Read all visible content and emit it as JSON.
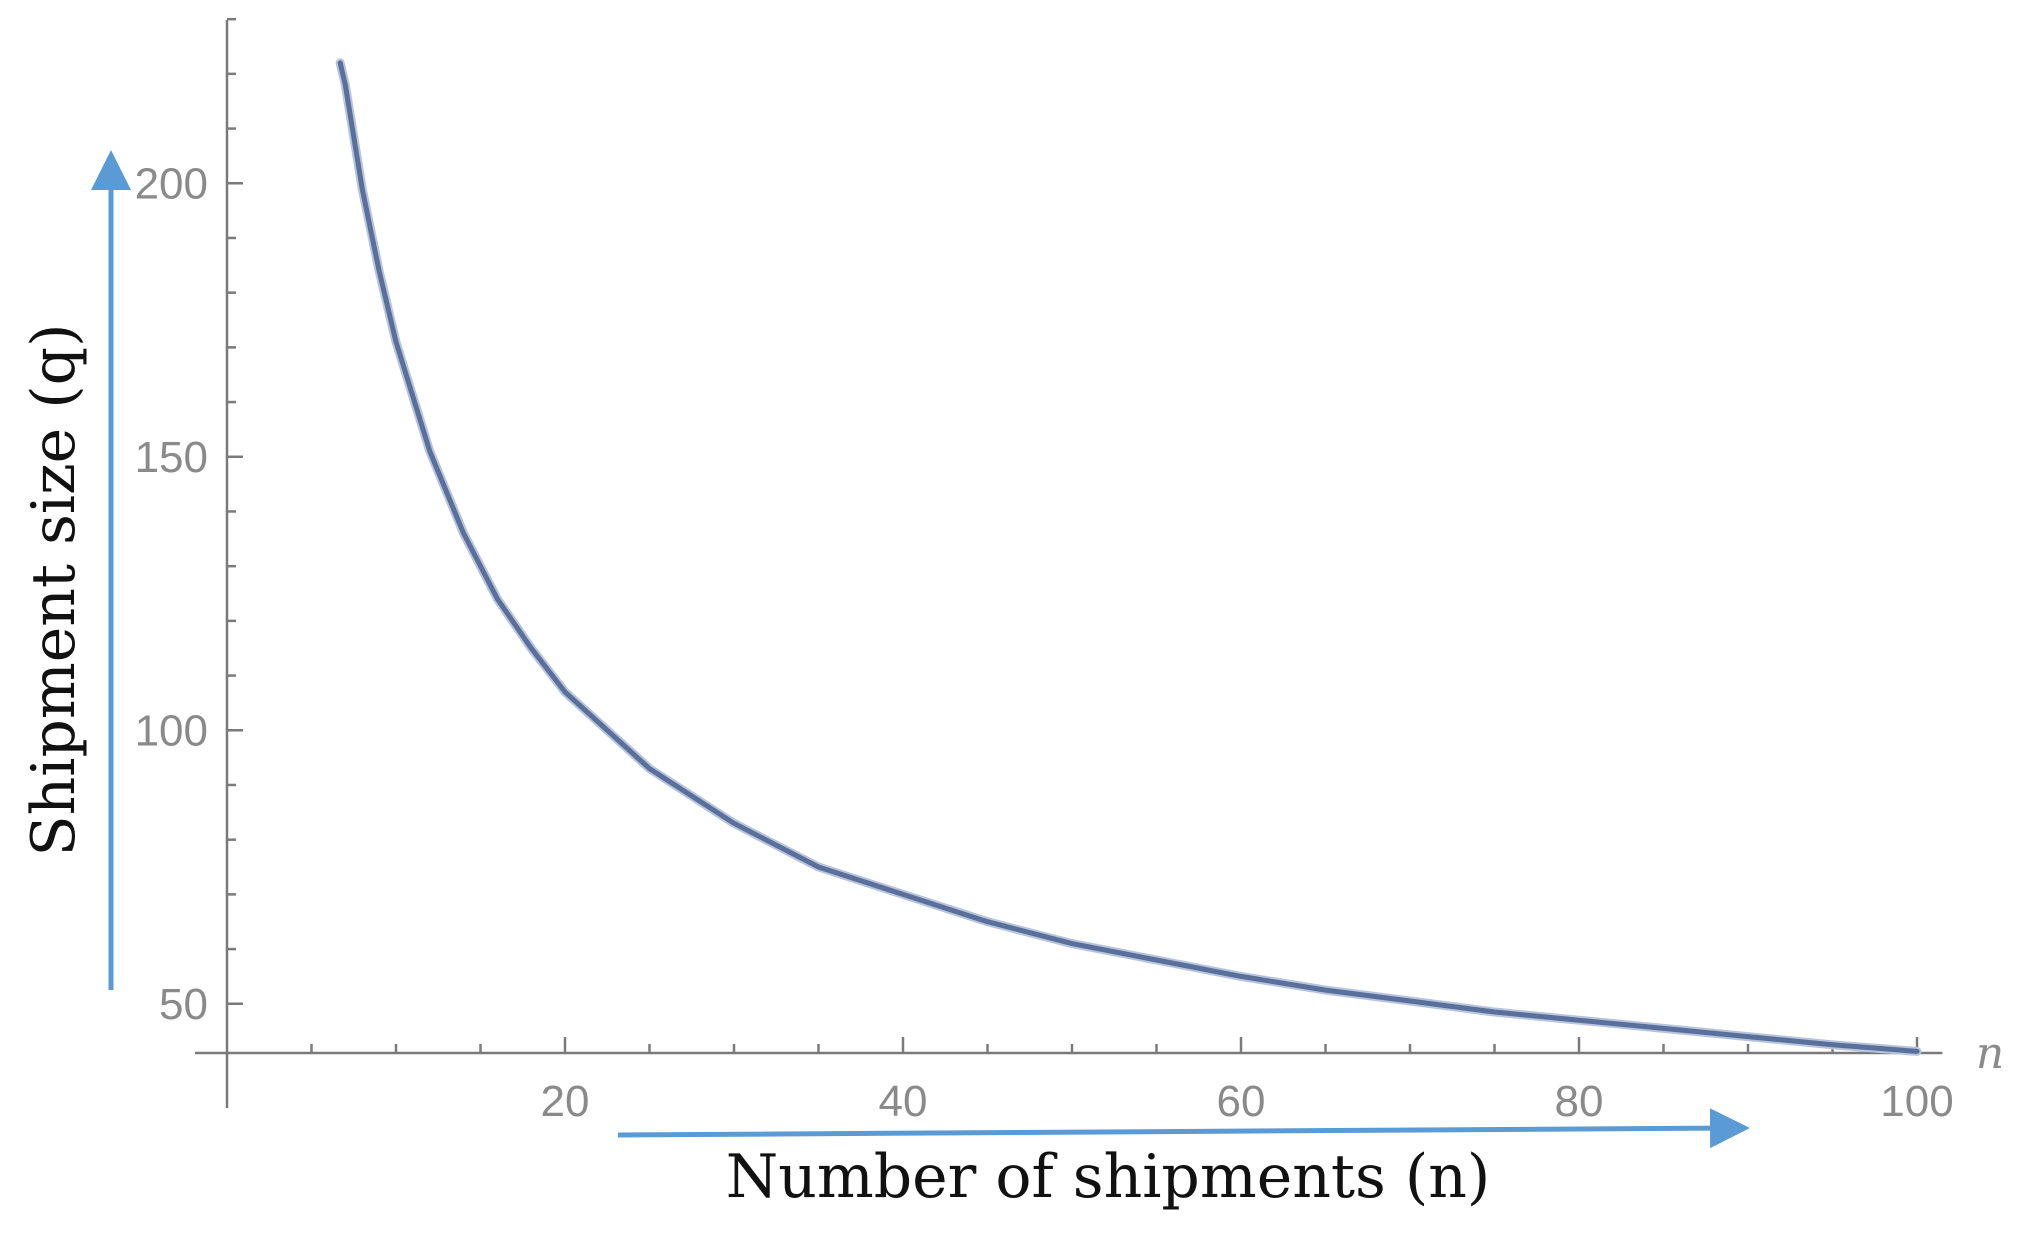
{
  "chart_data": {
    "type": "line",
    "title": "",
    "xlabel": "Number of shipments (n)",
    "ylabel": "Shipment size (q)",
    "x_axis_symbol": "n",
    "xlim": [
      0,
      101.5
    ],
    "ylim": [
      41,
      230
    ],
    "x_ticks": [
      20,
      40,
      60,
      80,
      100
    ],
    "y_ticks": [
      50,
      100,
      150,
      200
    ],
    "x_minor_step": 5,
    "y_minor_step": 10,
    "grid": false,
    "legend": "none",
    "series": [
      {
        "x": [
          6.7,
          7,
          8,
          9,
          10,
          12,
          14,
          16,
          18,
          20,
          25,
          30,
          35,
          40,
          45,
          50,
          55,
          60,
          65,
          70,
          75,
          80,
          85,
          90,
          95,
          100
        ],
        "y": [
          222,
          218,
          199,
          184,
          171,
          151,
          136,
          124,
          115,
          107,
          93,
          83,
          75,
          70,
          65,
          61,
          58,
          55,
          52.5,
          50.5,
          48.5,
          47,
          45.5,
          44,
          42.5,
          41.3
        ]
      }
    ],
    "colors": {
      "curve": "#5a6f99",
      "curve_halo": "#b7c4de",
      "axis": "#7a7a7a",
      "arrow": "#5b9bd5"
    }
  }
}
